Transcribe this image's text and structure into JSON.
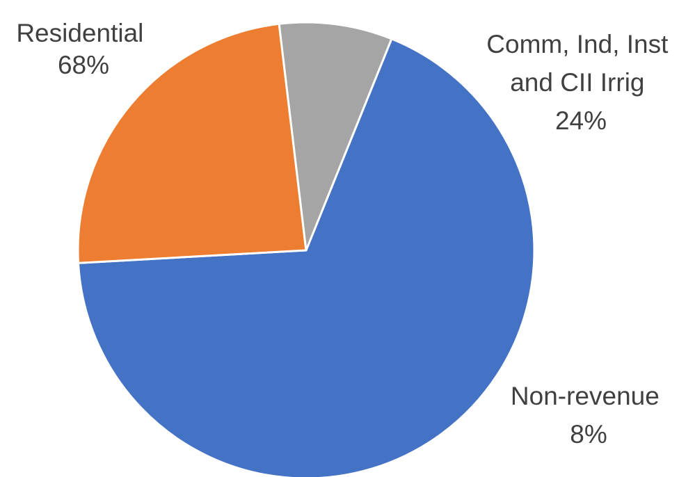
{
  "chart_data": {
    "type": "pie",
    "slices": [
      {
        "label_lines": [
          "Residential"
        ],
        "label": "Residential",
        "value": 68,
        "value_label": "68%",
        "color": "#4472C4"
      },
      {
        "label_lines": [
          "Comm, Ind, Inst",
          "and CII Irrig"
        ],
        "label": "Comm, Ind, Inst and CII Irrig",
        "value": 24,
        "value_label": "24%",
        "color": "#ED7D31"
      },
      {
        "label_lines": [
          "Non-revenue"
        ],
        "label": "Non-revenue",
        "value": 8,
        "value_label": "8%",
        "color": "#A5A5A5"
      }
    ],
    "start_angle_deg": 22,
    "direction": "clockwise",
    "legend": "none",
    "data_labels": "outside, category name and percentage"
  }
}
